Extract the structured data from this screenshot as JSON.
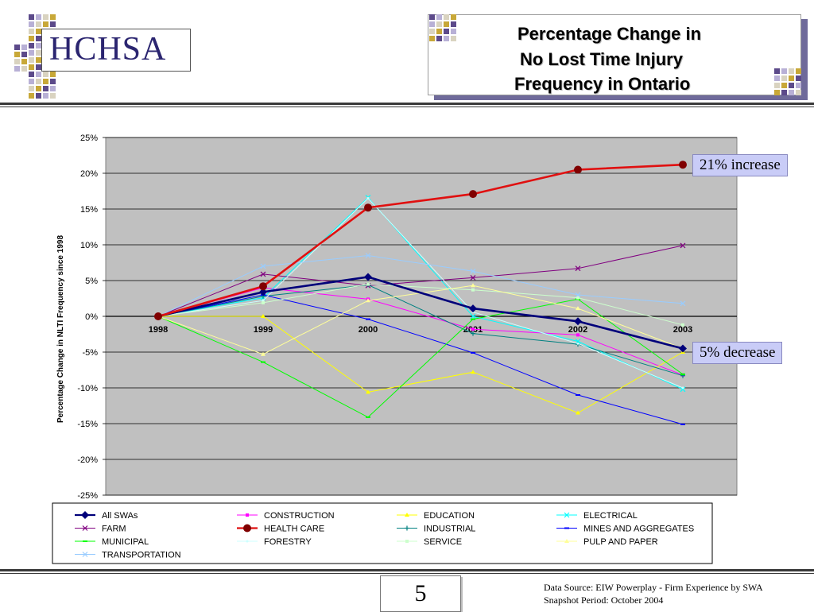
{
  "header": {
    "logo_text": "HCHSA",
    "title_lines": [
      "Percentage Change in",
      "No Lost Time Injury",
      "Frequency in Ontario"
    ]
  },
  "callouts": {
    "increase": "21% increase",
    "decrease": "5% decrease"
  },
  "footer": {
    "page_number": "5",
    "source_line1": "Data Source: EIW Powerplay - Firm Experience by SWA",
    "source_line2": "Snapshot Period: October 2004"
  },
  "colors": {
    "plot_bg": "#c0c0c0",
    "header_squares": [
      "#5c4a8a",
      "#b8b0d6",
      "#d9d3c0",
      "#c8a838"
    ]
  },
  "chart_data": {
    "type": "line",
    "title": "",
    "xlabel": "",
    "ylabel": "Percentage Change in NLTI Frequency since 1998",
    "categories": [
      "1998",
      "1999",
      "2000",
      "2001",
      "2002",
      "2003"
    ],
    "ylim": [
      -25,
      25
    ],
    "yticks": [
      "25%",
      "20%",
      "15%",
      "10%",
      "5%",
      "0%",
      "-5%",
      "-10%",
      "-15%",
      "-20%",
      "-25%"
    ],
    "grid": true,
    "legend_position": "bottom",
    "series": [
      {
        "name": "All SWAs",
        "color": "#00007a",
        "values": [
          0,
          3.4,
          5.5,
          1.1,
          -0.7,
          -4.5
        ]
      },
      {
        "name": "CONSTRUCTION",
        "color": "#ff00ff",
        "values": [
          0,
          4.0,
          2.4,
          -1.8,
          -2.6,
          -8.2
        ]
      },
      {
        "name": "EDUCATION",
        "color": "#ffff00",
        "values": [
          0,
          0.0,
          -10.6,
          -7.8,
          -13.5,
          -5.0
        ]
      },
      {
        "name": "ELECTRICAL",
        "color": "#00ffff",
        "values": [
          0,
          2.6,
          16.6,
          0.0,
          -3.5,
          -10.2
        ]
      },
      {
        "name": "FARM",
        "color": "#800080",
        "values": [
          0,
          5.9,
          4.3,
          5.4,
          6.7,
          9.9
        ]
      },
      {
        "name": "HEALTH CARE",
        "color": "#800000",
        "values": [
          0,
          4.2,
          15.2,
          17.1,
          20.5,
          21.2
        ]
      },
      {
        "name": "INDUSTRIAL",
        "color": "#008080",
        "values": [
          0,
          2.8,
          4.4,
          -2.4,
          -3.9,
          -8.3
        ]
      },
      {
        "name": "MINES AND AGGREGATES",
        "color": "#0000ff",
        "values": [
          0,
          3.0,
          -0.4,
          -5.1,
          -11.0,
          -15.1
        ]
      },
      {
        "name": "MUNICIPAL",
        "color": "#00ff00",
        "values": [
          0,
          -6.4,
          -14.1,
          -0.4,
          2.4,
          -8.1
        ]
      },
      {
        "name": "FORESTRY",
        "color": "#ccffff",
        "values": [
          0,
          2.2,
          16.5,
          0.6,
          -3.8,
          -10.0
        ]
      },
      {
        "name": "SERVICE",
        "color": "#ccffcc",
        "values": [
          0,
          1.9,
          4.5,
          3.7,
          2.6,
          -1.2
        ]
      },
      {
        "name": "PULP AND PAPER",
        "color": "#ffff99",
        "values": [
          0,
          -5.3,
          2.2,
          4.3,
          1.1,
          -4.5
        ]
      },
      {
        "name": "TRANSPORTATION",
        "color": "#99ccff",
        "values": [
          0,
          7.0,
          8.5,
          6.3,
          3.0,
          1.8
        ]
      }
    ]
  }
}
